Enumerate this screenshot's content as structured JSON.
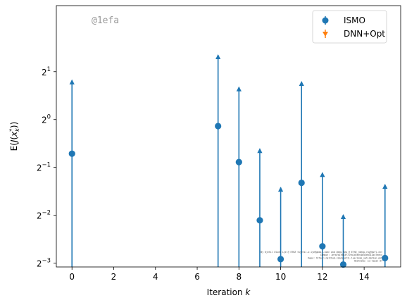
{
  "watermark": "@1efa",
  "credit_lines": [
    "By Kjetil Olsen Lye @ ETHZ <kjetil.o.lye@gmail.com> and Deep Rep @ ETHZ <deep.ray@epfl.ch>",
    "Commit: 1efa7d1f8b3f71fa1d789c4b53e0311bc7eecc",
    "Repo: https://github.com/kjetil-lye/ismo_validation.git",
    "Hostname: eu-login-37"
  ],
  "chart_data": {
    "type": "scatter",
    "title": "",
    "xlabel": "Iteration k",
    "ylabel": "E(J(x_k^*))",
    "xlim": [
      -0.75,
      15.75
    ],
    "ylim_log2": [
      -3.08,
      2.38
    ],
    "y_scale": "log2",
    "x_ticks": [
      0,
      2,
      4,
      6,
      8,
      10,
      12,
      14
    ],
    "y_ticks": [
      {
        "value": 0.125,
        "base": "2",
        "exp": "−3"
      },
      {
        "value": 0.25,
        "base": "2",
        "exp": "−2"
      },
      {
        "value": 0.5,
        "base": "2",
        "exp": "−1"
      },
      {
        "value": 1,
        "base": "2",
        "exp": "0"
      },
      {
        "value": 2,
        "base": "2",
        "exp": "1"
      }
    ],
    "legend_position": "top-right",
    "series": [
      {
        "name": "ISMO",
        "color": "#1f77b4",
        "marker": "circle",
        "x": [
          0,
          7,
          8,
          9,
          10,
          11,
          12,
          13,
          15
        ],
        "y": [
          0.61,
          0.91,
          0.54,
          0.2325,
          0.1325,
          0.4,
          0.1595,
          0.1225,
          0.1345
        ],
        "err_upper": [
          1.77,
          2.55,
          1.6,
          0.655,
          0.374,
          1.73,
          0.463,
          0.2515,
          0.39
        ]
      },
      {
        "name": "DNN+Opt",
        "color": "#ff7f0e",
        "marker": "triangle-down",
        "x": [],
        "y": []
      }
    ]
  }
}
